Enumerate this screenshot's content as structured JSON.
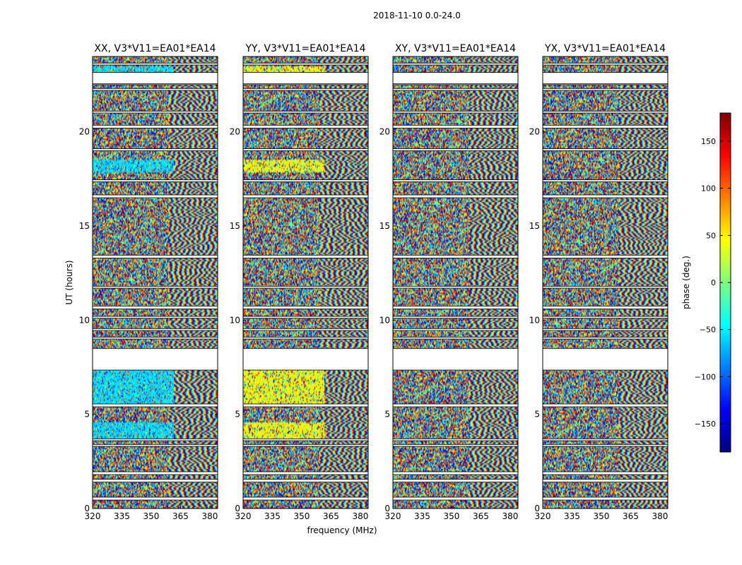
{
  "figure": {
    "suptitle": "2018-11-10 0.0-24.0",
    "xlabel": "frequency (MHz)",
    "ylabel": "UT (hours)",
    "colorbar_label": "phase (deg.)"
  },
  "colorbar": {
    "range": [
      -180,
      180
    ],
    "ticks": [
      150,
      100,
      50,
      0,
      -50,
      -100,
      -150
    ],
    "tick_labels": [
      "150",
      "100",
      "50",
      "0",
      "−50",
      "−100",
      "−150"
    ],
    "colormap": "jet",
    "colors": [
      "#00007f",
      "#0000ff",
      "#007fff",
      "#00ffff",
      "#7fff7f",
      "#ffff00",
      "#ff7f00",
      "#ff0000",
      "#7f0000"
    ]
  },
  "chart_data": {
    "type": "heatmap",
    "x_range": [
      320,
      384
    ],
    "y_range": [
      0,
      24
    ],
    "x_ticks": [
      320,
      335,
      350,
      365,
      380
    ],
    "x_tick_labels": [
      "320",
      "335",
      "350",
      "365",
      "380"
    ],
    "y_ticks": [
      0,
      5,
      10,
      15,
      20
    ],
    "y_tick_labels": [
      "0",
      "5",
      "10",
      "15",
      "20"
    ],
    "z_range": [
      -180,
      180
    ],
    "grid": false,
    "panels": [
      {
        "title": "XX, V3*V11=EA01*EA14",
        "bias": "cyan"
      },
      {
        "title": "YY, V3*V11=EA01*EA14",
        "bias": "yellow-green"
      },
      {
        "title": "XY, V3*V11=EA01*EA14",
        "bias": "none"
      },
      {
        "title": "YX, V3*V11=EA01*EA14",
        "bias": "none"
      }
    ],
    "data_gaps_ut": [
      [
        0.45,
        0.6
      ],
      [
        1.4,
        1.55
      ],
      [
        1.8,
        1.95
      ],
      [
        3.3,
        3.4
      ],
      [
        3.6,
        3.7
      ],
      [
        5.4,
        5.55
      ],
      [
        7.35,
        8.5
      ],
      [
        9.0,
        9.1
      ],
      [
        9.45,
        9.55
      ],
      [
        10.1,
        10.2
      ],
      [
        10.6,
        10.75
      ],
      [
        11.7,
        11.8
      ],
      [
        13.3,
        13.45
      ],
      [
        16.5,
        16.65
      ],
      [
        17.35,
        17.45
      ],
      [
        19.0,
        19.1
      ],
      [
        20.2,
        20.35
      ],
      [
        21.0,
        21.1
      ],
      [
        22.2,
        22.3
      ],
      [
        22.55,
        22.5
      ],
      [
        22.55,
        23.15
      ],
      [
        23.55,
        23.65
      ]
    ]
  }
}
